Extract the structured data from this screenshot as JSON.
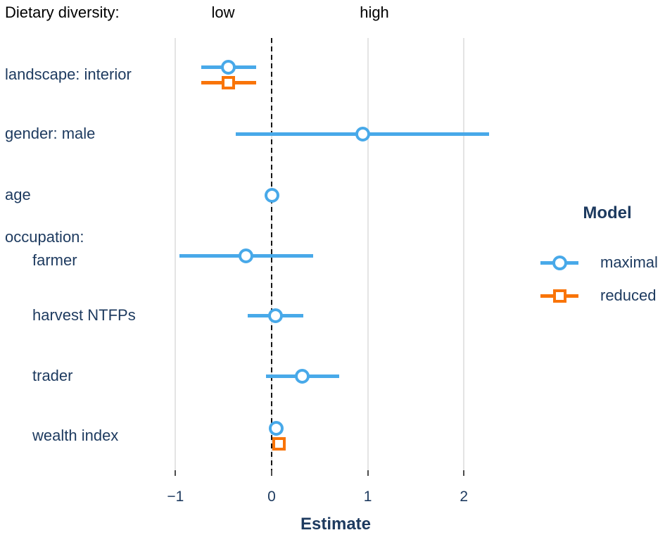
{
  "header": {
    "title": "Dietary diversity:",
    "low": "low",
    "high": "high"
  },
  "axis": {
    "title": "Estimate"
  },
  "legend": {
    "title": "Model",
    "position": "right"
  },
  "colors": {
    "text_navy": "#1D3A5F",
    "header_black": "#000000",
    "gridline": "#E4E4E4",
    "tick": "#4D4D4D",
    "reference_line": "#141414",
    "maximal": "#48A9E9",
    "reduced": "#F97408"
  },
  "chart_data": {
    "type": "scatter",
    "subtype": "forest-plot-dot-whisker-horizontal-CI",
    "title": "Dietary diversity:",
    "xlabel": "Estimate",
    "ylabel": "",
    "x_ticks": [
      -1,
      0,
      1,
      2
    ],
    "x_tick_labels": [
      "−1",
      "0",
      "1",
      "2"
    ],
    "xlim": [
      -1.07,
      2.52
    ],
    "grid": "vertical-only",
    "reference_line_x": 0,
    "reference_line_style": "dashed-black",
    "header_annotations": [
      {
        "text": "low",
        "x": -0.5
      },
      {
        "text": "high",
        "x": 1.07
      }
    ],
    "categories": [
      "landscape: interior",
      "gender: male",
      "age",
      "occupation: farmer",
      "harvest NTFPs",
      "trader",
      "wealth index"
    ],
    "y_axis_labels": [
      {
        "lines": [
          {
            "text": "landscape: interior",
            "indent": false
          }
        ]
      },
      {
        "lines": [
          {
            "text": "gender: male",
            "indent": false
          }
        ]
      },
      {
        "lines": [
          {
            "text": "age",
            "indent": false
          }
        ]
      },
      {
        "lines": [
          {
            "text": "occupation:",
            "indent": false
          },
          {
            "text": "farmer",
            "indent": true
          }
        ]
      },
      {
        "lines": [
          {
            "text": "harvest NTFPs",
            "indent": true
          }
        ]
      },
      {
        "lines": [
          {
            "text": "trader",
            "indent": true
          }
        ]
      },
      {
        "lines": [
          {
            "text": "wealth index",
            "indent": true
          }
        ]
      }
    ],
    "legend": {
      "title": "Model",
      "position": "right",
      "entries": [
        "maximal",
        "reduced"
      ]
    },
    "series": [
      {
        "name": "maximal",
        "marker": "open-circle",
        "color": "#48A9E9",
        "points": [
          {
            "category": "landscape: interior",
            "estimate": -0.45,
            "ci": [
              -0.73,
              -0.16
            ]
          },
          {
            "category": "gender: male",
            "estimate": 0.95,
            "ci": [
              -0.37,
              2.26
            ]
          },
          {
            "category": "age",
            "estimate": 0.0,
            "ci": [
              -0.04,
              0.04
            ]
          },
          {
            "category": "occupation: farmer",
            "estimate": -0.27,
            "ci": [
              -0.96,
              0.43
            ]
          },
          {
            "category": "harvest NTFPs",
            "estimate": 0.04,
            "ci": [
              -0.25,
              0.33
            ]
          },
          {
            "category": "trader",
            "estimate": 0.32,
            "ci": [
              -0.06,
              0.7
            ]
          },
          {
            "category": "wealth index",
            "estimate": 0.05,
            "ci": [
              0.0,
              0.1
            ]
          }
        ]
      },
      {
        "name": "reduced",
        "marker": "open-square",
        "color": "#F97408",
        "points": [
          {
            "category": "landscape: interior",
            "estimate": -0.45,
            "ci": [
              -0.73,
              -0.16
            ]
          },
          {
            "category": "wealth index",
            "estimate": 0.08,
            "ci": [
              0.02,
              0.14
            ]
          }
        ]
      }
    ]
  }
}
